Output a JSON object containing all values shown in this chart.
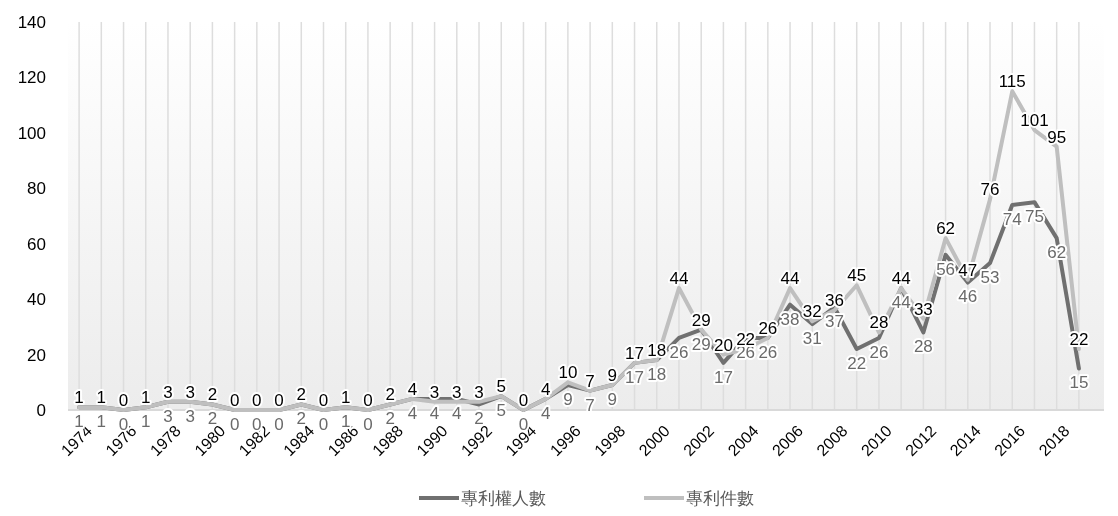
{
  "chart_data": {
    "type": "line",
    "categories": [
      "1974",
      null,
      "1976",
      null,
      "1978",
      null,
      "1980",
      null,
      "1982",
      null,
      "1984",
      null,
      "1986",
      null,
      "1988",
      null,
      "1990",
      null,
      "1992",
      null,
      "1994",
      null,
      "1996",
      null,
      "1998",
      null,
      "2000",
      null,
      "2002",
      null,
      "2004",
      null,
      "2006",
      null,
      "2008",
      null,
      "2010",
      null,
      "2012",
      null,
      "2014",
      null,
      "2016",
      null,
      "2018",
      null
    ],
    "series": [
      {
        "name": "專利權人數",
        "color": "#707070",
        "values": [
          1,
          1,
          0,
          1,
          3,
          3,
          2,
          0,
          0,
          0,
          2,
          0,
          1,
          0,
          2,
          4,
          4,
          4,
          2,
          5,
          0,
          4,
          9,
          7,
          9,
          17,
          18,
          26,
          29,
          17,
          26,
          26,
          38,
          31,
          37,
          22,
          26,
          44,
          28,
          56,
          46,
          53,
          74,
          75,
          62,
          15
        ]
      },
      {
        "name": "專利件數",
        "color": "#bfbfbf",
        "values": [
          1,
          1,
          0,
          1,
          3,
          3,
          2,
          0,
          0,
          0,
          2,
          0,
          1,
          0,
          2,
          4,
          3,
          3,
          3,
          5,
          0,
          4,
          10,
          7,
          9,
          17,
          18,
          44,
          29,
          20,
          22,
          26,
          44,
          32,
          36,
          45,
          28,
          44,
          33,
          62,
          47,
          76,
          115,
          101,
          95,
          22
        ]
      }
    ],
    "ylim": [
      0,
      140
    ],
    "yticks": [
      0,
      20,
      40,
      60,
      80,
      100,
      120,
      140
    ],
    "grid": "x",
    "legend": "bottom",
    "data_labels": true,
    "marker": "none",
    "line_style": "solid"
  }
}
